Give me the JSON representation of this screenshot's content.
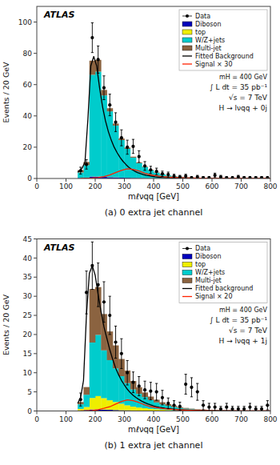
{
  "chart_data": [
    {
      "type": "histogram",
      "title": "(a)  0 extra jet channel",
      "x_label": "mℓνqq [GeV]",
      "y_label": "Events / 20 GeV",
      "xlim": [
        0,
        800
      ],
      "xticks": [
        0,
        100,
        200,
        300,
        400,
        500,
        600,
        700,
        800
      ],
      "ylim": [
        0,
        110
      ],
      "yticks": [
        0,
        20,
        40,
        60,
        80,
        100
      ],
      "stacked": true,
      "grid": false,
      "legend": "upper right",
      "bins": [
        140,
        160,
        180,
        200,
        220,
        240,
        260,
        280,
        300,
        320,
        340,
        360,
        380,
        400,
        420,
        440,
        460,
        480,
        500,
        520,
        540,
        560,
        580,
        600,
        620,
        640,
        660,
        680,
        700,
        720,
        740,
        760,
        780,
        800
      ],
      "annotations": [
        "ATLAS",
        "mH = 400 GeV",
        "∫ L dt = 35 pb⁻¹",
        "√s = 7 TeV",
        "H → lνqq + 0j"
      ],
      "series": [
        {
          "name": "Data",
          "type": "scatter",
          "marker": "circle",
          "color": "#000000",
          "x": [
            150,
            170,
            190,
            210,
            230,
            250,
            270,
            290,
            310,
            330,
            350,
            370,
            390,
            410,
            430,
            450,
            470,
            490,
            510,
            530,
            550,
            570,
            590,
            610,
            630,
            650,
            670,
            690,
            710,
            730,
            750,
            770,
            790
          ],
          "values": [
            5.0,
            9.0,
            90.0,
            76.0,
            58.0,
            47.0,
            36.0,
            26.0,
            20.0,
            20.5,
            14.0,
            8.0,
            5.5,
            4.5,
            3.0,
            2.5,
            1.5,
            1.0,
            1.5,
            0.5,
            1.0,
            0.5,
            0.5,
            2.0,
            1.0,
            0.5,
            0.5,
            1.0,
            0.5,
            0.5,
            0.5,
            0.5,
            0.5
          ],
          "errors": [
            2.2,
            3.0,
            9.5,
            8.7,
            7.6,
            6.9,
            6.0,
            5.1,
            4.5,
            4.5,
            3.7,
            2.8,
            2.3,
            2.1,
            1.7,
            1.6,
            1.2,
            1.0,
            1.2,
            0.7,
            1.0,
            0.7,
            0.7,
            1.4,
            1.0,
            0.7,
            0.7,
            1.0,
            0.7,
            0.7,
            0.7,
            0.7,
            0.7
          ]
        },
        {
          "name": "Diboson",
          "type": "bar",
          "color": "#0000bb",
          "values": [
            0.3,
            0.5,
            1.2,
            1.2,
            1.0,
            0.8,
            0.7,
            0.5,
            0.4,
            0.3,
            0.25,
            0.2,
            0.15,
            0.12,
            0.1,
            0.08,
            0.06,
            0.05,
            0.04,
            0.03,
            0.02,
            0.02,
            0.01,
            0.01,
            0.01,
            0.01,
            0.01,
            0.01,
            0.01,
            0.01,
            0.01,
            0.01,
            0.01
          ]
        },
        {
          "name": "top",
          "type": "bar",
          "color": "#eeee00",
          "values": [
            0.05,
            0.05,
            0.1,
            0.1,
            0.1,
            0.1,
            0.1,
            0.05,
            0.05,
            0.05,
            0.05,
            0.05,
            0.05,
            0.05,
            0.05,
            0.05,
            0.05,
            0.05,
            0.05,
            0.05,
            0.05,
            0.05,
            0.05,
            0.05,
            0.05,
            0.05,
            0.05,
            0.05,
            0.05,
            0.05,
            0.05,
            0.05,
            0.05
          ]
        },
        {
          "name": "W/Z+jets",
          "type": "bar",
          "color": "#00cccc",
          "values": [
            3.5,
            8.0,
            65.0,
            67.0,
            52.0,
            42.0,
            33.0,
            24.0,
            18.5,
            13.0,
            9.5,
            7.0,
            5.0,
            3.5,
            2.5,
            1.8,
            1.3,
            1.0,
            0.7,
            0.55,
            0.4,
            0.3,
            0.22,
            0.18,
            0.14,
            0.11,
            0.09,
            0.07,
            0.06,
            0.05,
            0.04,
            0.03,
            0.02
          ]
        },
        {
          "name": "Multi-jet",
          "type": "bar",
          "color": "#8B6340",
          "values": [
            1.5,
            2.0,
            9.0,
            7.5,
            3.5,
            2.0,
            1.3,
            1.0,
            0.8,
            0.6,
            0.5,
            0.35,
            0.3,
            0.22,
            0.18,
            0.12,
            0.09,
            0.07,
            0.06,
            0.05,
            0.04,
            0.03,
            0.02,
            0.02,
            0.01,
            0.01,
            0.01,
            0.01,
            0.01,
            0.01,
            0.01,
            0.01,
            0.01
          ]
        },
        {
          "name": "Fitted Background",
          "type": "line",
          "color": "#000000",
          "x": [
            140,
            155,
            165,
            175,
            185,
            195,
            205,
            215,
            225,
            235,
            245,
            255,
            265,
            275,
            285,
            295,
            305,
            315,
            325,
            335,
            345,
            355,
            365,
            375,
            385,
            395,
            405,
            415,
            425,
            435,
            445,
            455,
            465,
            475,
            485,
            495,
            510,
            530,
            550,
            580,
            620,
            680,
            740,
            800
          ],
          "values": [
            4.0,
            6.5,
            10.5,
            38.0,
            72.0,
            78.0,
            72.0,
            58.0,
            46.0,
            37.0,
            30.0,
            24.5,
            20.0,
            16.5,
            13.5,
            11.0,
            9.0,
            7.2,
            5.8,
            4.7,
            3.8,
            3.1,
            2.5,
            2.0,
            1.7,
            1.4,
            1.1,
            0.9,
            0.75,
            0.62,
            0.52,
            0.43,
            0.36,
            0.3,
            0.25,
            0.22,
            0.17,
            0.12,
            0.09,
            0.06,
            0.04,
            0.02,
            0.01,
            0.005
          ]
        },
        {
          "name": "Signal × 30",
          "type": "line",
          "color": "#ff2200",
          "x": [
            150,
            170,
            190,
            210,
            230,
            250,
            270,
            290,
            310,
            330,
            350,
            370,
            390,
            410,
            430,
            450,
            470,
            490,
            510,
            530,
            560,
            600,
            650,
            700,
            750,
            800
          ],
          "values": [
            0.05,
            0.1,
            0.25,
            0.6,
            1.2,
            2.2,
            3.8,
            5.2,
            6.2,
            5.8,
            4.8,
            3.3,
            2.3,
            1.7,
            1.2,
            0.9,
            0.7,
            0.55,
            0.4,
            0.3,
            0.18,
            0.1,
            0.05,
            0.02,
            0.01,
            0.005
          ]
        }
      ]
    },
    {
      "type": "histogram",
      "title": "(b)  1 extra jet channel",
      "x_label": "mℓνqq [GeV]",
      "y_label": "Events / 20 GeV",
      "xlim": [
        0,
        800
      ],
      "xticks": [
        0,
        100,
        200,
        300,
        400,
        500,
        600,
        700,
        800
      ],
      "ylim": [
        0,
        45
      ],
      "yticks": [
        0,
        5,
        10,
        15,
        20,
        25,
        30,
        35,
        40,
        45
      ],
      "stacked": true,
      "grid": false,
      "legend": "upper right",
      "bins": [
        140,
        160,
        180,
        200,
        220,
        240,
        260,
        280,
        300,
        320,
        340,
        360,
        380,
        400,
        420,
        440,
        460,
        480,
        500,
        520,
        540,
        560,
        580,
        600,
        620,
        640,
        660,
        680,
        700,
        720,
        740,
        760,
        780,
        800
      ],
      "annotations": [
        "ATLAS",
        "mH = 400 GeV",
        "∫ L dt = 35 pb⁻¹",
        "√s = 7 TeV",
        "H → lνqq + 1j"
      ],
      "series": [
        {
          "name": "Data",
          "type": "scatter",
          "marker": "circle",
          "color": "#000000",
          "x": [
            150,
            170,
            190,
            210,
            230,
            250,
            270,
            290,
            310,
            330,
            350,
            370,
            390,
            410,
            430,
            450,
            470,
            490,
            510,
            530,
            550,
            570,
            590,
            610,
            630,
            650,
            670,
            690,
            710,
            730,
            750,
            770,
            790
          ],
          "values": [
            3.0,
            31.0,
            38.0,
            33.0,
            28.5,
            25.0,
            18.0,
            15.0,
            10.0,
            7.5,
            6.5,
            5.5,
            5.2,
            5.0,
            3.5,
            2.0,
            1.5,
            1.2,
            7.0,
            6.2,
            5.0,
            1.5,
            1.0,
            1.0,
            0.5,
            1.0,
            0.5,
            0.5,
            0.5,
            1.0,
            0.5,
            0.5,
            1.5
          ],
          "errors": [
            1.7,
            5.6,
            6.2,
            5.7,
            5.3,
            5.0,
            4.2,
            3.9,
            3.2,
            2.7,
            2.5,
            2.3,
            2.3,
            2.2,
            1.9,
            1.4,
            1.2,
            1.1,
            2.6,
            2.5,
            2.2,
            1.2,
            1.0,
            1.0,
            0.7,
            1.0,
            0.7,
            0.7,
            0.7,
            1.0,
            0.7,
            0.7,
            1.2
          ]
        },
        {
          "name": "Diboson",
          "type": "bar",
          "color": "#0000bb",
          "values": [
            0.15,
            0.25,
            0.4,
            0.4,
            0.35,
            0.3,
            0.25,
            0.2,
            0.18,
            0.14,
            0.11,
            0.09,
            0.07,
            0.06,
            0.05,
            0.04,
            0.03,
            0.02,
            0.02,
            0.01,
            0.01,
            0.01,
            0.01,
            0.01,
            0.01,
            0.01,
            0.01,
            0.01,
            0.01,
            0.01,
            0.01,
            0.01,
            0.01
          ]
        },
        {
          "name": "top",
          "type": "bar",
          "color": "#eeee00",
          "values": [
            0.4,
            0.8,
            3.0,
            3.5,
            3.0,
            2.5,
            2.1,
            1.7,
            1.3,
            1.0,
            0.8,
            0.65,
            0.5,
            0.38,
            0.28,
            0.22,
            0.17,
            0.13,
            0.1,
            0.07,
            0.05,
            0.04,
            0.03,
            0.02,
            0.02,
            0.01,
            0.01,
            0.01,
            0.01,
            0.01,
            0.01,
            0.01,
            0.01
          ]
        },
        {
          "name": "W/Z+jets",
          "type": "bar",
          "color": "#00cccc",
          "values": [
            1.2,
            3.2,
            14.5,
            16.0,
            12.5,
            10.5,
            8.8,
            7.2,
            5.8,
            4.5,
            3.6,
            2.9,
            2.3,
            1.8,
            1.4,
            1.1,
            0.85,
            0.65,
            0.5,
            0.4,
            0.3,
            0.25,
            0.2,
            0.16,
            0.12,
            0.1,
            0.08,
            0.06,
            0.05,
            0.04,
            0.03,
            0.02,
            0.02
          ]
        },
        {
          "name": "Multi-jet",
          "type": "bar",
          "color": "#8B6340",
          "values": [
            0.6,
            2.0,
            14.0,
            12.5,
            9.5,
            7.5,
            6.0,
            4.5,
            3.3,
            2.2,
            1.7,
            1.2,
            0.9,
            0.7,
            0.55,
            0.42,
            0.32,
            0.24,
            0.18,
            0.13,
            0.1,
            0.07,
            0.05,
            0.04,
            0.03,
            0.02,
            0.02,
            0.01,
            0.01,
            0.01,
            0.01,
            0.01,
            0.01
          ]
        },
        {
          "name": "Fitted background",
          "type": "line",
          "color": "#000000",
          "x": [
            140,
            150,
            160,
            170,
            180,
            190,
            200,
            210,
            220,
            230,
            240,
            250,
            260,
            270,
            280,
            290,
            300,
            310,
            320,
            330,
            340,
            350,
            360,
            370,
            380,
            390,
            400,
            410,
            420,
            430,
            440,
            450,
            460,
            470,
            480,
            490,
            500,
            520,
            550,
            580,
            620,
            660,
            700,
            750,
            800
          ],
          "values": [
            2.0,
            3.5,
            8.0,
            25.0,
            36.0,
            38.0,
            35.5,
            30.5,
            26.0,
            22.0,
            19.0,
            16.0,
            13.5,
            11.2,
            9.5,
            8.0,
            6.8,
            5.7,
            4.8,
            4.1,
            3.5,
            3.0,
            2.55,
            2.18,
            1.85,
            1.58,
            1.35,
            1.15,
            0.98,
            0.84,
            0.72,
            0.62,
            0.53,
            0.46,
            0.4,
            0.35,
            0.3,
            0.23,
            0.16,
            0.11,
            0.07,
            0.05,
            0.035,
            0.022,
            0.015
          ]
        },
        {
          "name": "Signal × 20",
          "type": "line",
          "color": "#ff2200",
          "x": [
            150,
            170,
            190,
            210,
            230,
            250,
            270,
            290,
            310,
            330,
            350,
            370,
            390,
            410,
            430,
            450,
            470,
            490,
            510,
            540,
            580,
            630,
            700,
            760,
            800
          ],
          "values": [
            0.02,
            0.05,
            0.12,
            0.35,
            0.7,
            1.1,
            1.8,
            2.5,
            2.9,
            2.7,
            2.2,
            1.6,
            1.15,
            0.85,
            0.65,
            0.5,
            0.38,
            0.29,
            0.22,
            0.14,
            0.08,
            0.04,
            0.015,
            0.006,
            0.003
          ]
        }
      ]
    }
  ]
}
